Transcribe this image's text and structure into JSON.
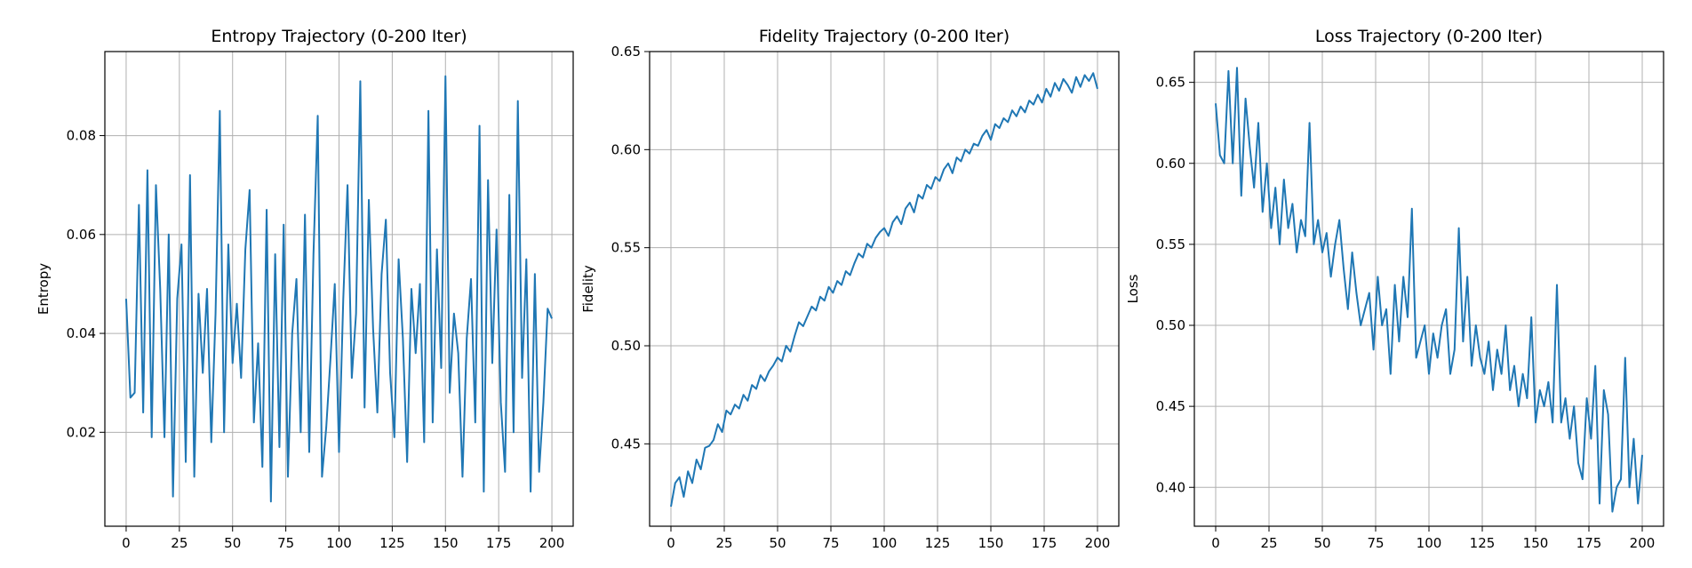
{
  "chart_data": [
    {
      "type": "line",
      "title": "Entropy Trajectory (0-200 Iter)",
      "xlabel": "",
      "ylabel": "Entropy",
      "xlim": [
        -10,
        210
      ],
      "ylim": [
        0.001,
        0.097
      ],
      "xticks": [
        0,
        25,
        50,
        75,
        100,
        125,
        150,
        175,
        200
      ],
      "yticks": [
        0.02,
        0.04,
        0.06,
        0.08
      ],
      "ytick_labels": [
        "0.02",
        "0.04",
        "0.06",
        "0.08"
      ],
      "grid": true,
      "color": "#1f77b4",
      "series": [
        {
          "x": [
            0,
            2,
            4,
            6,
            8,
            10,
            12,
            14,
            16,
            18,
            20,
            22,
            24,
            26,
            28,
            30,
            32,
            34,
            36,
            38,
            40,
            42,
            44,
            46,
            48,
            50,
            52,
            54,
            56,
            58,
            60,
            62,
            64,
            66,
            68,
            70,
            72,
            74,
            76,
            78,
            80,
            82,
            84,
            86,
            88,
            90,
            92,
            94,
            96,
            98,
            100,
            102,
            104,
            106,
            108,
            110,
            112,
            114,
            116,
            118,
            120,
            122,
            124,
            126,
            128,
            130,
            132,
            134,
            136,
            138,
            140,
            142,
            144,
            146,
            148,
            150,
            152,
            154,
            156,
            158,
            160,
            162,
            164,
            166,
            168,
            170,
            172,
            174,
            176,
            178,
            180,
            182,
            184,
            186,
            188,
            190,
            192,
            194,
            196,
            198,
            200
          ],
          "y": [
            0.047,
            0.027,
            0.028,
            0.066,
            0.024,
            0.073,
            0.019,
            0.07,
            0.049,
            0.019,
            0.06,
            0.007,
            0.047,
            0.058,
            0.014,
            0.072,
            0.011,
            0.048,
            0.032,
            0.049,
            0.018,
            0.044,
            0.085,
            0.02,
            0.058,
            0.034,
            0.046,
            0.031,
            0.057,
            0.069,
            0.022,
            0.038,
            0.013,
            0.065,
            0.006,
            0.056,
            0.017,
            0.062,
            0.011,
            0.04,
            0.051,
            0.02,
            0.064,
            0.016,
            0.056,
            0.084,
            0.011,
            0.021,
            0.035,
            0.05,
            0.016,
            0.047,
            0.07,
            0.031,
            0.044,
            0.091,
            0.025,
            0.067,
            0.041,
            0.024,
            0.052,
            0.063,
            0.032,
            0.019,
            0.055,
            0.039,
            0.014,
            0.049,
            0.036,
            0.05,
            0.018,
            0.085,
            0.022,
            0.057,
            0.033,
            0.092,
            0.028,
            0.044,
            0.036,
            0.011,
            0.039,
            0.051,
            0.022,
            0.082,
            0.008,
            0.071,
            0.034,
            0.061,
            0.026,
            0.012,
            0.068,
            0.02,
            0.087,
            0.031,
            0.055,
            0.008,
            0.052,
            0.012,
            0.026,
            0.045,
            0.043
          ]
        }
      ]
    },
    {
      "type": "line",
      "title": "Fidelity Trajectory (0-200 Iter)",
      "xlabel": "",
      "ylabel": "Fidelity",
      "xlim": [
        -10,
        210
      ],
      "ylim": [
        0.408,
        0.65
      ],
      "xticks": [
        0,
        25,
        50,
        75,
        100,
        125,
        150,
        175,
        200
      ],
      "yticks": [
        0.45,
        0.5,
        0.55,
        0.6,
        0.65
      ],
      "ytick_labels": [
        "0.45",
        "0.50",
        "0.55",
        "0.60",
        "0.65"
      ],
      "grid": true,
      "color": "#1f77b4",
      "series": [
        {
          "x": [
            0,
            2,
            4,
            6,
            8,
            10,
            12,
            14,
            16,
            18,
            20,
            22,
            24,
            26,
            28,
            30,
            32,
            34,
            36,
            38,
            40,
            42,
            44,
            46,
            48,
            50,
            52,
            54,
            56,
            58,
            60,
            62,
            64,
            66,
            68,
            70,
            72,
            74,
            76,
            78,
            80,
            82,
            84,
            86,
            88,
            90,
            92,
            94,
            96,
            98,
            100,
            102,
            104,
            106,
            108,
            110,
            112,
            114,
            116,
            118,
            120,
            122,
            124,
            126,
            128,
            130,
            132,
            134,
            136,
            138,
            140,
            142,
            144,
            146,
            148,
            150,
            152,
            154,
            156,
            158,
            160,
            162,
            164,
            166,
            168,
            170,
            172,
            174,
            176,
            178,
            180,
            182,
            184,
            186,
            188,
            190,
            192,
            194,
            196,
            198,
            200
          ],
          "y": [
            0.418,
            0.43,
            0.433,
            0.423,
            0.436,
            0.43,
            0.442,
            0.437,
            0.448,
            0.449,
            0.452,
            0.46,
            0.456,
            0.467,
            0.465,
            0.47,
            0.468,
            0.475,
            0.472,
            0.48,
            0.478,
            0.485,
            0.482,
            0.487,
            0.49,
            0.494,
            0.492,
            0.5,
            0.497,
            0.505,
            0.512,
            0.51,
            0.515,
            0.52,
            0.518,
            0.525,
            0.523,
            0.53,
            0.527,
            0.533,
            0.531,
            0.538,
            0.536,
            0.542,
            0.547,
            0.545,
            0.552,
            0.55,
            0.555,
            0.558,
            0.56,
            0.556,
            0.563,
            0.566,
            0.562,
            0.57,
            0.573,
            0.568,
            0.577,
            0.575,
            0.582,
            0.58,
            0.586,
            0.584,
            0.59,
            0.593,
            0.588,
            0.596,
            0.594,
            0.6,
            0.598,
            0.603,
            0.602,
            0.607,
            0.61,
            0.605,
            0.613,
            0.611,
            0.616,
            0.614,
            0.62,
            0.617,
            0.622,
            0.619,
            0.625,
            0.623,
            0.628,
            0.624,
            0.631,
            0.627,
            0.634,
            0.63,
            0.636,
            0.633,
            0.629,
            0.637,
            0.632,
            0.638,
            0.635,
            0.639,
            0.631
          ]
        }
      ]
    },
    {
      "type": "line",
      "title": "Loss Trajectory (0-200 Iter)",
      "xlabel": "",
      "ylabel": "Loss",
      "xlim": [
        -10,
        210
      ],
      "ylim": [
        0.376,
        0.669
      ],
      "xticks": [
        0,
        25,
        50,
        75,
        100,
        125,
        150,
        175,
        200
      ],
      "yticks": [
        0.4,
        0.45,
        0.5,
        0.55,
        0.6,
        0.65
      ],
      "ytick_labels": [
        "0.40",
        "0.45",
        "0.50",
        "0.55",
        "0.60",
        "0.65"
      ],
      "grid": true,
      "color": "#1f77b4",
      "series": [
        {
          "x": [
            0,
            2,
            4,
            6,
            8,
            10,
            12,
            14,
            16,
            18,
            20,
            22,
            24,
            26,
            28,
            30,
            32,
            34,
            36,
            38,
            40,
            42,
            44,
            46,
            48,
            50,
            52,
            54,
            56,
            58,
            60,
            62,
            64,
            66,
            68,
            70,
            72,
            74,
            76,
            78,
            80,
            82,
            84,
            86,
            88,
            90,
            92,
            94,
            96,
            98,
            100,
            102,
            104,
            106,
            108,
            110,
            112,
            114,
            116,
            118,
            120,
            122,
            124,
            126,
            128,
            130,
            132,
            134,
            136,
            138,
            140,
            142,
            144,
            146,
            148,
            150,
            152,
            154,
            156,
            158,
            160,
            162,
            164,
            166,
            168,
            170,
            172,
            174,
            176,
            178,
            180,
            182,
            184,
            186,
            188,
            190,
            192,
            194,
            196,
            198,
            200
          ],
          "y": [
            0.637,
            0.605,
            0.6,
            0.657,
            0.6,
            0.659,
            0.58,
            0.64,
            0.61,
            0.585,
            0.625,
            0.57,
            0.6,
            0.56,
            0.585,
            0.55,
            0.59,
            0.56,
            0.575,
            0.545,
            0.565,
            0.555,
            0.625,
            0.55,
            0.565,
            0.545,
            0.557,
            0.53,
            0.55,
            0.565,
            0.535,
            0.51,
            0.545,
            0.52,
            0.5,
            0.51,
            0.52,
            0.485,
            0.53,
            0.5,
            0.51,
            0.47,
            0.525,
            0.49,
            0.53,
            0.505,
            0.572,
            0.48,
            0.49,
            0.5,
            0.47,
            0.495,
            0.48,
            0.5,
            0.51,
            0.47,
            0.485,
            0.56,
            0.49,
            0.53,
            0.475,
            0.5,
            0.48,
            0.47,
            0.49,
            0.46,
            0.485,
            0.47,
            0.5,
            0.46,
            0.475,
            0.45,
            0.47,
            0.455,
            0.505,
            0.44,
            0.46,
            0.45,
            0.465,
            0.44,
            0.525,
            0.44,
            0.455,
            0.43,
            0.45,
            0.415,
            0.405,
            0.455,
            0.43,
            0.475,
            0.39,
            0.46,
            0.445,
            0.385,
            0.4,
            0.405,
            0.48,
            0.4,
            0.43,
            0.39,
            0.42
          ]
        }
      ]
    }
  ]
}
